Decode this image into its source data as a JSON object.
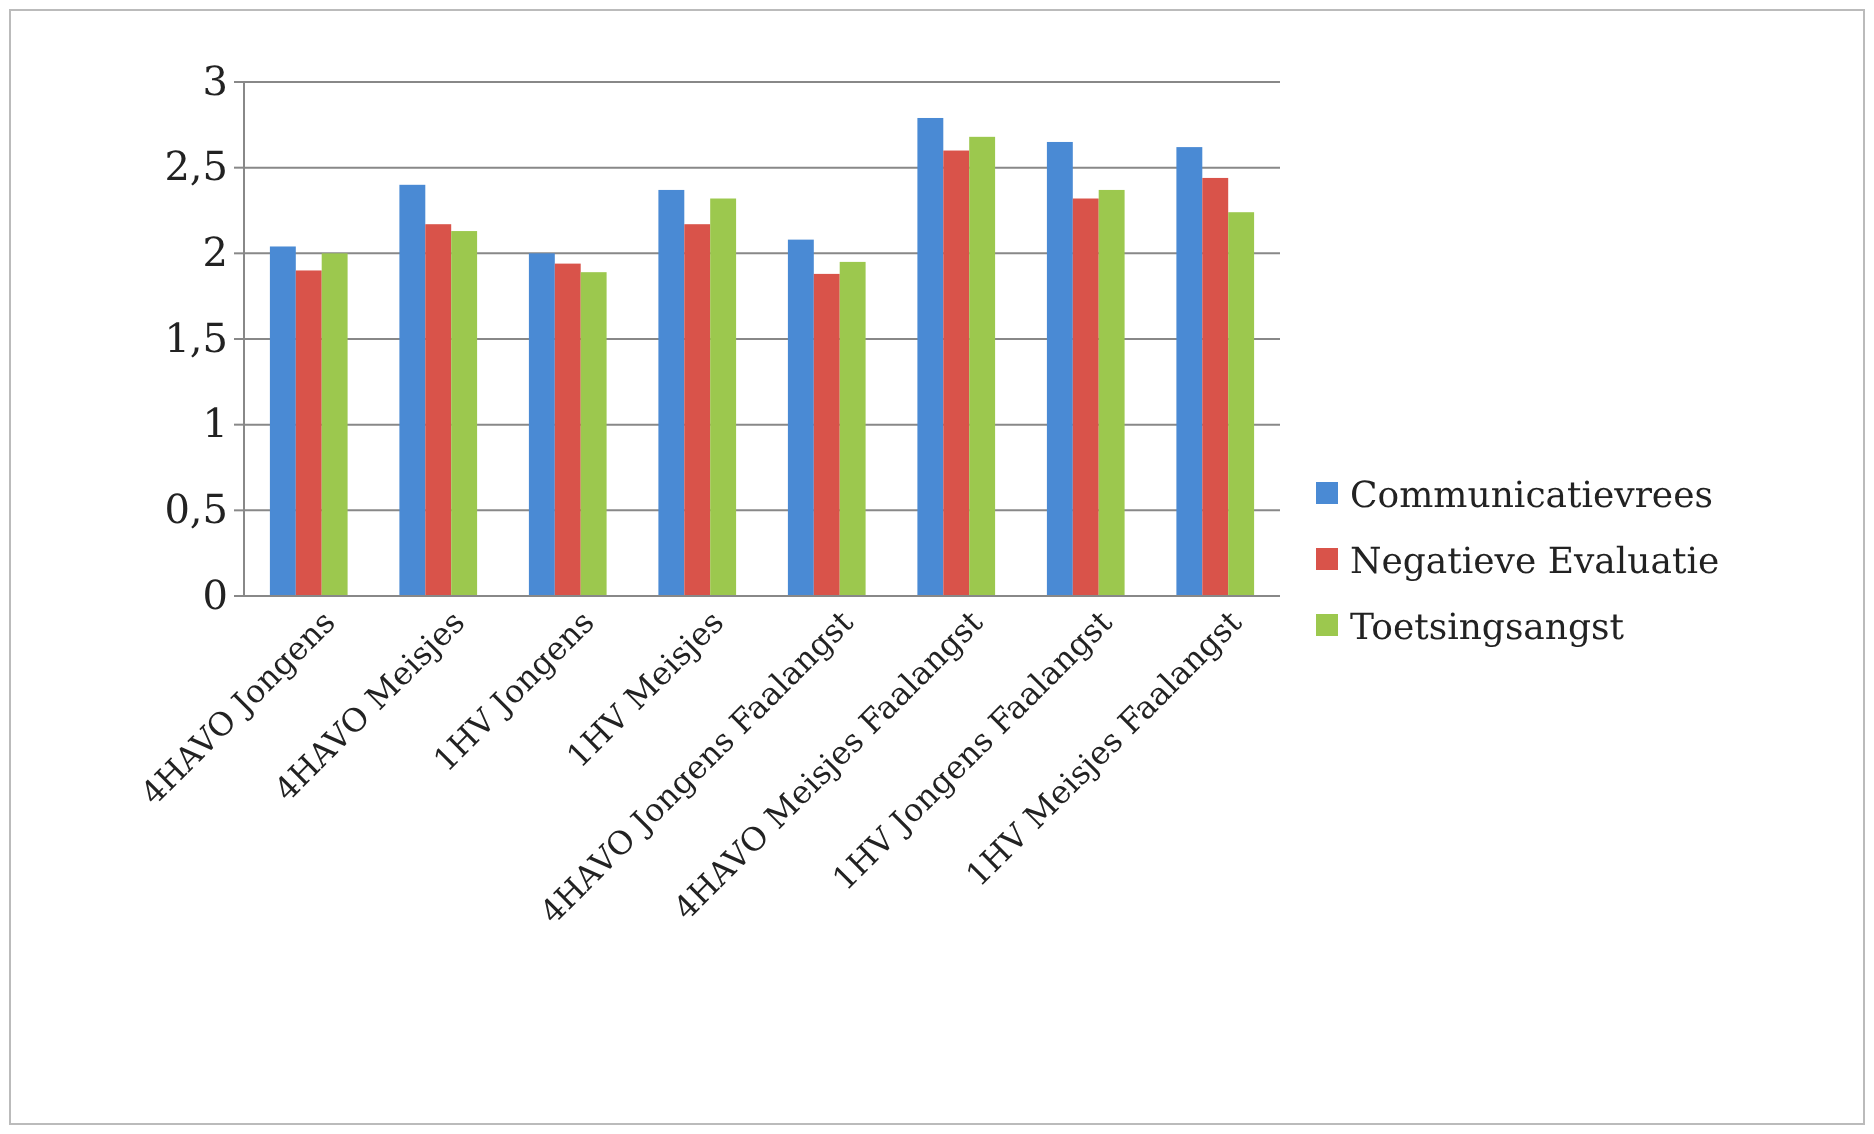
{
  "chart_data": {
    "type": "bar",
    "categories": [
      "4HAVO Jongens",
      "4HAVO Meisjes",
      "1HV Jongens",
      "1HV Meisjes",
      "4HAVO Jongens Faalangst",
      "4HAVO Meisjes Faalangst",
      "1HV Jongens Faalangst",
      "1HV Meisjes Faalangst"
    ],
    "series": [
      {
        "name": "Communicatievrees",
        "color": "#4a8ad4",
        "values": [
          2.04,
          2.4,
          2.0,
          2.37,
          2.08,
          2.79,
          2.65,
          2.62
        ]
      },
      {
        "name": "Negatieve Evaluatie",
        "color": "#d9534a",
        "values": [
          1.9,
          2.17,
          1.94,
          2.17,
          1.88,
          2.6,
          2.32,
          2.44
        ]
      },
      {
        "name": "Toetsingsangst",
        "color": "#9cc84e",
        "values": [
          2.0,
          2.13,
          1.89,
          2.32,
          1.95,
          2.68,
          2.37,
          2.24
        ]
      }
    ],
    "ylim": [
      0,
      3
    ],
    "yticks": [
      0,
      {
        "value": 0.5,
        "label": "0,5"
      },
      1,
      {
        "value": 1.5,
        "label": "1,5"
      },
      2,
      {
        "value": 2.5,
        "label": "2,5"
      },
      3
    ],
    "grid": "y",
    "legend": "right"
  }
}
